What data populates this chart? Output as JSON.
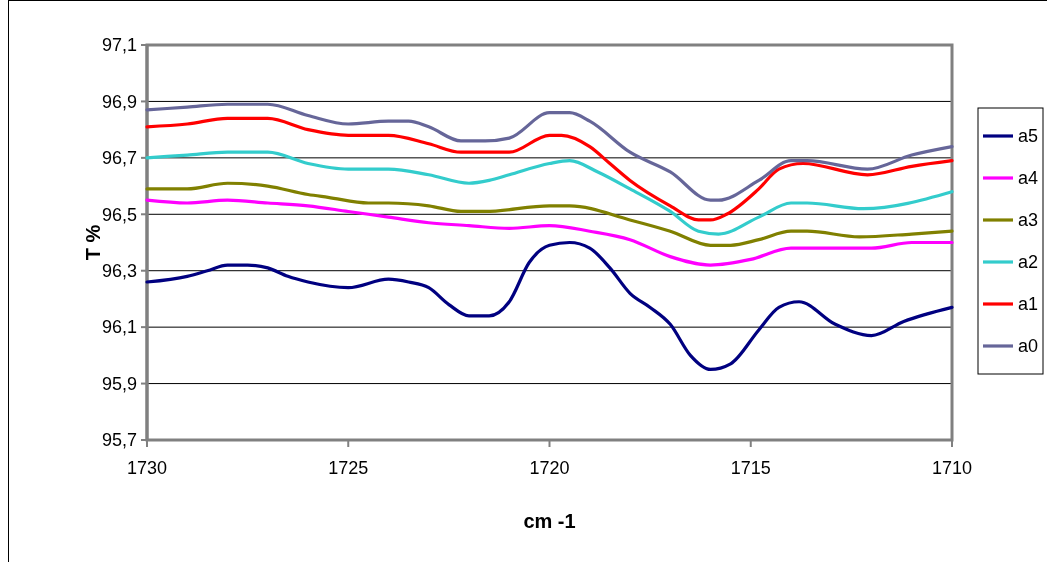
{
  "chart_data": {
    "type": "line",
    "xlabel": "cm -1",
    "ylabel": "T %",
    "xlim": [
      1730,
      1710
    ],
    "xticks": [
      1730,
      1725,
      1720,
      1715,
      1710
    ],
    "ylim": [
      95.7,
      97.1
    ],
    "yticks": [
      {
        "value": 95.7,
        "label": "95,7"
      },
      {
        "value": 95.9,
        "label": "95,9"
      },
      {
        "value": 96.1,
        "label": "96,1"
      },
      {
        "value": 96.3,
        "label": "96,3"
      },
      {
        "value": 96.5,
        "label": "96,5"
      },
      {
        "value": 96.7,
        "label": "96,7"
      },
      {
        "value": 96.9,
        "label": "96,9"
      },
      {
        "value": 97.1,
        "label": "97,1"
      }
    ],
    "grid": "y",
    "legend": "right",
    "marker": "none",
    "line_style": "solid",
    "series": [
      {
        "name": "a5",
        "color": "#000080",
        "x": [
          1730,
          1729,
          1728.5,
          1728,
          1727.5,
          1727,
          1726.5,
          1726,
          1725,
          1724,
          1723.5,
          1723,
          1722.5,
          1722,
          1721.5,
          1721,
          1720.5,
          1720,
          1719.5,
          1719,
          1718.5,
          1718,
          1717.5,
          1717,
          1716.5,
          1716,
          1715.5,
          1714.8,
          1714.3,
          1713.8,
          1712.9,
          1712,
          1711.2,
          1710
        ],
        "values": [
          96.26,
          96.28,
          96.3,
          96.32,
          96.32,
          96.31,
          96.28,
          96.26,
          96.24,
          96.27,
          96.26,
          96.24,
          96.18,
          96.14,
          96.14,
          96.19,
          96.33,
          96.39,
          96.4,
          96.38,
          96.31,
          96.22,
          96.17,
          96.11,
          96.0,
          95.95,
          95.97,
          96.09,
          96.17,
          96.19,
          96.11,
          96.07,
          96.12,
          96.17
        ]
      },
      {
        "name": "a4",
        "color": "#ff00ff",
        "x": [
          1730,
          1729,
          1728,
          1727,
          1726,
          1725,
          1724,
          1723,
          1722,
          1721,
          1720,
          1719,
          1718,
          1717,
          1716,
          1715,
          1714,
          1712,
          1711,
          1710
        ],
        "values": [
          96.55,
          96.54,
          96.55,
          96.54,
          96.53,
          96.51,
          96.49,
          96.47,
          96.46,
          96.45,
          96.46,
          96.44,
          96.41,
          96.35,
          96.32,
          96.34,
          96.38,
          96.38,
          96.4,
          96.4
        ]
      },
      {
        "name": "a3",
        "color": "#808000",
        "x": [
          1730,
          1729,
          1728,
          1727,
          1726,
          1725.5,
          1724.5,
          1724,
          1723,
          1722.2,
          1721.6,
          1720,
          1719.5,
          1718,
          1717,
          1716,
          1715.5,
          1714.8,
          1714,
          1713.6,
          1712.3,
          1711,
          1710
        ],
        "values": [
          96.59,
          96.59,
          96.61,
          96.6,
          96.57,
          96.56,
          96.54,
          96.54,
          96.53,
          96.51,
          96.51,
          96.53,
          96.53,
          96.48,
          96.44,
          96.39,
          96.39,
          96.41,
          96.44,
          96.44,
          96.42,
          96.43,
          96.44
        ]
      },
      {
        "name": "a2",
        "color": "#33cccc",
        "x": [
          1730,
          1729,
          1728,
          1727.5,
          1727,
          1726,
          1725,
          1724,
          1723,
          1722,
          1721.5,
          1721,
          1720,
          1719.5,
          1718.8,
          1718,
          1717,
          1716.3,
          1715.8,
          1714.8,
          1714,
          1713.6,
          1712.2,
          1710
        ],
        "values": [
          96.7,
          96.71,
          96.72,
          96.72,
          96.72,
          96.68,
          96.66,
          96.66,
          96.64,
          96.61,
          96.62,
          96.64,
          96.68,
          96.69,
          96.65,
          96.59,
          96.51,
          96.44,
          96.43,
          96.49,
          96.54,
          96.54,
          96.52,
          96.58
        ]
      },
      {
        "name": "a1",
        "color": "#ff0000",
        "x": [
          1730,
          1729,
          1728,
          1727.5,
          1727,
          1726,
          1725,
          1724,
          1723,
          1722.2,
          1721.6,
          1721,
          1720,
          1719.7,
          1719,
          1718.5,
          1718,
          1717,
          1716.3,
          1716,
          1715.6,
          1714.8,
          1714.3,
          1713.7,
          1712.1,
          1711,
          1710
        ],
        "values": [
          96.81,
          96.82,
          96.84,
          96.84,
          96.84,
          96.8,
          96.78,
          96.78,
          96.75,
          96.72,
          96.72,
          96.72,
          96.78,
          96.78,
          96.74,
          96.68,
          96.62,
          96.53,
          96.48,
          96.48,
          96.5,
          96.59,
          96.66,
          96.68,
          96.64,
          96.67,
          96.69
        ]
      },
      {
        "name": "a0",
        "color": "#666699",
        "x": [
          1730,
          1729,
          1728,
          1727,
          1726,
          1725,
          1724,
          1723.5,
          1723,
          1722.2,
          1721.6,
          1721,
          1720,
          1719.5,
          1719,
          1718,
          1717,
          1716,
          1715.8,
          1714.8,
          1714,
          1713.6,
          1712.1,
          1711,
          1710
        ],
        "values": [
          96.87,
          96.88,
          96.89,
          96.89,
          96.85,
          96.82,
          96.83,
          96.83,
          96.81,
          96.76,
          96.76,
          96.77,
          96.86,
          96.86,
          96.83,
          96.72,
          96.65,
          96.55,
          96.55,
          96.62,
          96.69,
          96.69,
          96.66,
          96.71,
          96.74
        ]
      }
    ]
  }
}
